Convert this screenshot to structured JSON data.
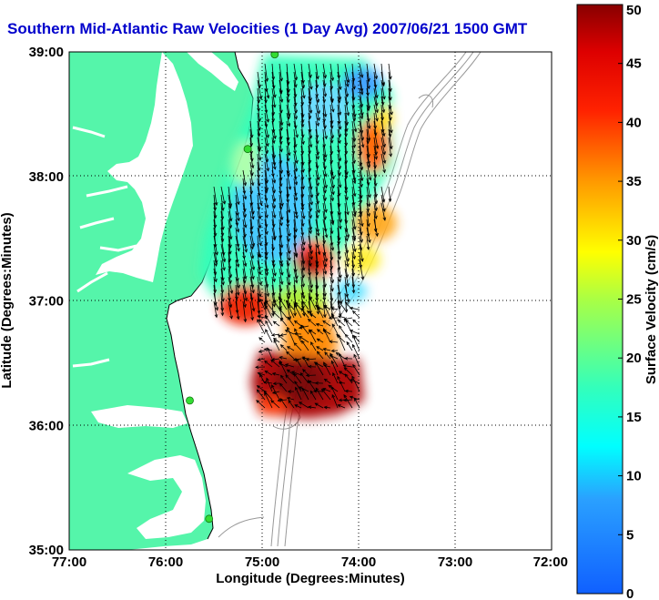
{
  "title": "Southern Mid-Atlantic Raw Velocities (1 Day Avg) 2007/06/21 1500 GMT",
  "x_axis": {
    "label": "Longitude (Degrees:Minutes)",
    "ticks": [
      "77:00",
      "76:00",
      "75:00",
      "74:00",
      "73:00",
      "72:00"
    ]
  },
  "y_axis": {
    "label": "Latitude (Degrees:Minutes)",
    "ticks": [
      "39:00",
      "38:00",
      "37:00",
      "36:00",
      "35:00"
    ]
  },
  "colorbar": {
    "label": "Surface Velocity (cm/s)",
    "ticks": [
      "0",
      "5",
      "10",
      "15",
      "20",
      "25",
      "30",
      "35",
      "40",
      "45",
      "50"
    ],
    "min": 0,
    "max": 50
  },
  "extent": {
    "lon_min": -77,
    "lon_max": -72,
    "lat_min": 35,
    "lat_max": 39
  },
  "colors": {
    "land": "#55f5aa",
    "grid": "#000000",
    "bathymetry": "#999999",
    "station": "#33dd33",
    "title": "#0000cc"
  },
  "stations": [
    {
      "lon": -74.87,
      "lat": 38.98
    },
    {
      "lon": -75.15,
      "lat": 38.22
    },
    {
      "lon": -75.75,
      "lat": 36.2
    },
    {
      "lon": -75.55,
      "lat": 35.25
    }
  ]
}
